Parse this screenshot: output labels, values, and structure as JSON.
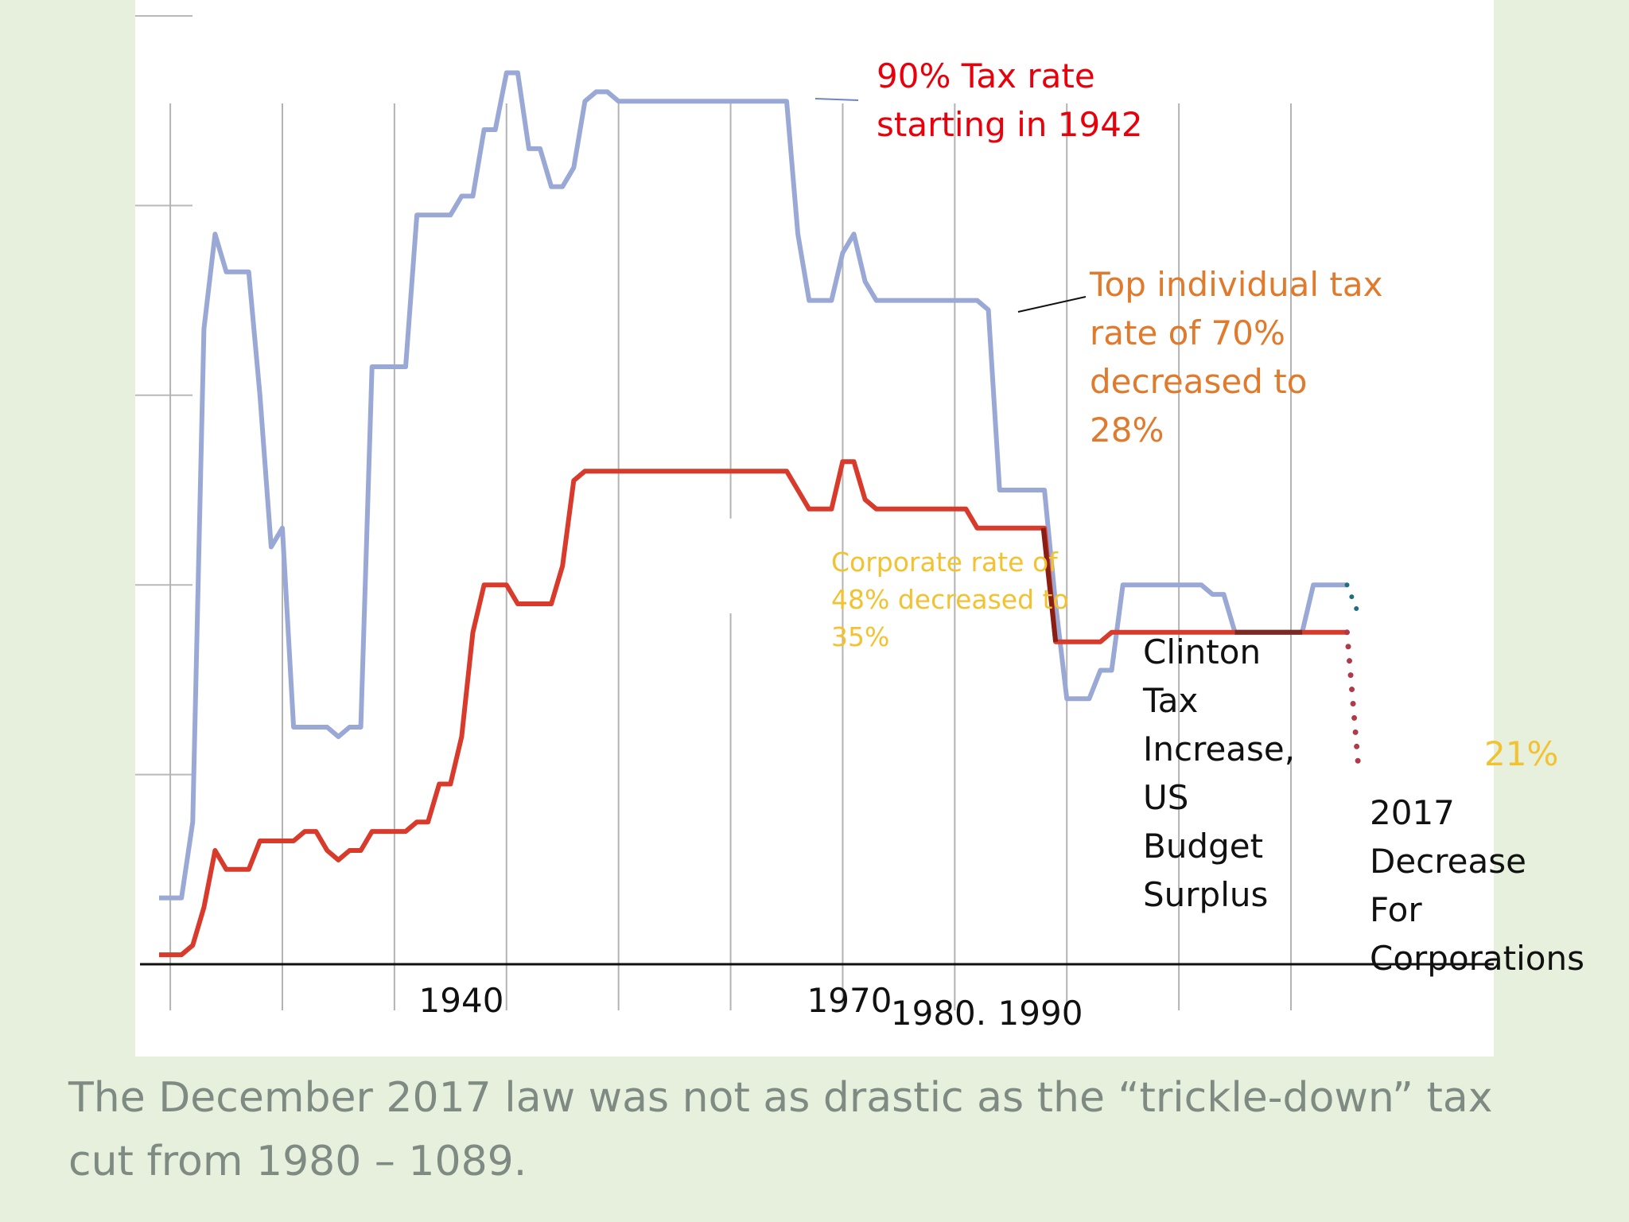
{
  "caption": {
    "line1": "The December 2017 law was not as drastic as the “trickle-down” tax",
    "line2": "cut from 1980 – 1089."
  },
  "colors": {
    "individual": "#9aa8d6",
    "corporate": "#d83b2b",
    "projection_individual": "#1f6e7d",
    "projection_corporate": "#b03a48",
    "red_text": "#e8000b",
    "orange_text": "#e07a2c",
    "yellow_text": "#f2c230",
    "black_text": "#111111",
    "background": "#e6f0dc"
  },
  "annotations": {
    "ninety": [
      "90% Tax rate",
      "starting in 1942"
    ],
    "top_individual": [
      "Top individual tax",
      "rate of 70%",
      "decreased  to",
      "28%"
    ],
    "corporate": [
      "Corporate rate of",
      "48% decreased to",
      "35%"
    ],
    "clinton": [
      "Clinton",
      "Tax",
      "Increase,",
      "US",
      "Budget",
      "Surplus"
    ],
    "twentyone": "21%",
    "decrease2017": [
      "2017",
      "Decrease",
      "For",
      "Corporations"
    ]
  },
  "chart_data": {
    "type": "line",
    "title": "",
    "xlabel": "",
    "ylabel": "",
    "xlim": [
      1909,
      2021
    ],
    "ylim": [
      0,
      100
    ],
    "grid": true,
    "x_tick_labels": [
      {
        "x": 1940,
        "label": "1940"
      },
      {
        "x": 1970,
        "label": "1970"
      },
      {
        "x": 1980,
        "label": "1980."
      },
      {
        "x": 1990,
        "label": "1990"
      }
    ],
    "series": [
      {
        "role": "individual",
        "points": [
          [
            1909,
            7
          ],
          [
            1911,
            7
          ],
          [
            1912,
            15
          ],
          [
            1913,
            67
          ],
          [
            1914,
            77
          ],
          [
            1915,
            73
          ],
          [
            1917,
            73
          ],
          [
            1918,
            60
          ],
          [
            1919,
            44
          ],
          [
            1920,
            46
          ],
          [
            1921,
            25
          ],
          [
            1924,
            25
          ],
          [
            1925,
            24
          ],
          [
            1926,
            25
          ],
          [
            1927,
            25
          ],
          [
            1928,
            63
          ],
          [
            1931,
            63
          ],
          [
            1932,
            79
          ],
          [
            1935,
            79
          ],
          [
            1936,
            81
          ],
          [
            1937,
            81
          ],
          [
            1938,
            88
          ],
          [
            1939,
            88
          ],
          [
            1940,
            94
          ],
          [
            1941,
            94
          ],
          [
            1942,
            86
          ],
          [
            1943,
            86
          ],
          [
            1944,
            82
          ],
          [
            1945,
            82
          ],
          [
            1946,
            84
          ],
          [
            1947,
            91
          ],
          [
            1948,
            92
          ],
          [
            1949,
            92
          ],
          [
            1950,
            91
          ],
          [
            1965,
            91
          ],
          [
            1966,
            77
          ],
          [
            1967,
            70
          ],
          [
            1969,
            70
          ],
          [
            1970,
            75
          ],
          [
            1971,
            77
          ],
          [
            1972,
            72
          ],
          [
            1973,
            70
          ],
          [
            1982,
            70
          ],
          [
            1983,
            69
          ],
          [
            1984,
            50
          ],
          [
            1988,
            50
          ],
          [
            1989,
            38
          ],
          [
            1990,
            28
          ],
          [
            1992,
            28
          ],
          [
            1993,
            31
          ],
          [
            1994,
            31
          ],
          [
            1995,
            40
          ],
          [
            2002,
            40
          ],
          [
            2003,
            39
          ],
          [
            2004,
            39
          ],
          [
            2005,
            35
          ],
          [
            2011,
            35
          ],
          [
            2012,
            40
          ],
          [
            2015,
            40
          ]
        ]
      },
      {
        "role": "corporate",
        "points": [
          [
            1909,
            1
          ],
          [
            1911,
            1
          ],
          [
            1912,
            2
          ],
          [
            1913,
            6
          ],
          [
            1914,
            12
          ],
          [
            1915,
            10
          ],
          [
            1917,
            10
          ],
          [
            1918,
            13
          ],
          [
            1921,
            13
          ],
          [
            1922,
            14
          ],
          [
            1923,
            14
          ],
          [
            1924,
            12
          ],
          [
            1925,
            11
          ],
          [
            1926,
            12
          ],
          [
            1927,
            12
          ],
          [
            1928,
            14
          ],
          [
            1931,
            14
          ],
          [
            1932,
            15
          ],
          [
            1933,
            15
          ],
          [
            1934,
            19
          ],
          [
            1935,
            19
          ],
          [
            1936,
            24
          ],
          [
            1937,
            35
          ],
          [
            1938,
            40
          ],
          [
            1940,
            40
          ],
          [
            1941,
            38
          ],
          [
            1944,
            38
          ],
          [
            1945,
            42
          ],
          [
            1946,
            51
          ],
          [
            1947,
            52
          ],
          [
            1965,
            52
          ],
          [
            1966,
            50
          ],
          [
            1967,
            48
          ],
          [
            1969,
            48
          ],
          [
            1970,
            53
          ],
          [
            1971,
            53
          ],
          [
            1972,
            49
          ],
          [
            1973,
            48
          ],
          [
            1981,
            48
          ],
          [
            1982,
            46
          ],
          [
            1988,
            46
          ],
          [
            1989,
            34
          ],
          [
            1991,
            34
          ],
          [
            1993,
            34
          ],
          [
            1994,
            35
          ],
          [
            2015,
            35
          ]
        ]
      },
      {
        "role": "projection_individual",
        "style": "dotted",
        "points": [
          [
            2015,
            40
          ],
          [
            2016,
            37
          ]
        ]
      },
      {
        "role": "projection_corporate",
        "style": "dotted",
        "points": [
          [
            2015,
            35
          ],
          [
            2016,
            21
          ]
        ]
      }
    ]
  }
}
